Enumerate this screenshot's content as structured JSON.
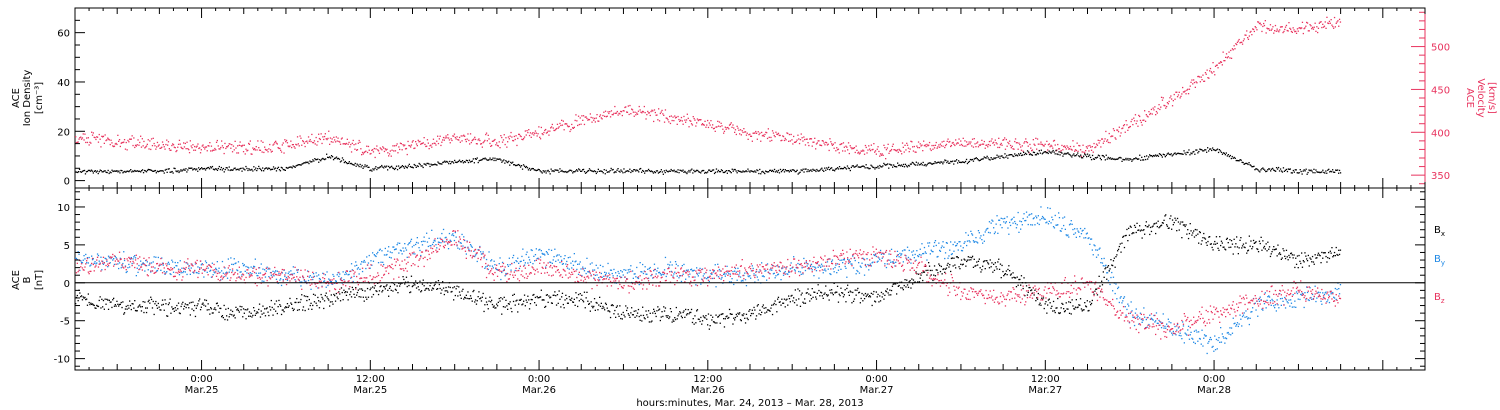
{
  "chart_data": [
    {
      "type": "scatter",
      "panel": "plasma",
      "ylabel": [
        "ACE",
        "Ion Density",
        "[cm⁻³]"
      ],
      "y2label": [
        "ACE",
        "Velocity",
        "[km/s]"
      ],
      "ylim": [
        -3,
        70
      ],
      "yticks": [
        0,
        20,
        40,
        60
      ],
      "y2lim": [
        335,
        545
      ],
      "y2ticks": [
        350,
        400,
        450,
        500
      ],
      "colors": {
        "density": "#000000",
        "velocity": "#e8335e"
      },
      "series": [
        {
          "name": "Ion Density",
          "axis": "left",
          "x_hours": [
            -9,
            -6,
            -3,
            0,
            3,
            6,
            9,
            12,
            15,
            18,
            21,
            24,
            27,
            30,
            33,
            36,
            39,
            42,
            45,
            48,
            51,
            54,
            57,
            60,
            63,
            66,
            69,
            72,
            75,
            78,
            81
          ],
          "values": [
            4,
            4,
            4,
            5,
            5,
            5,
            10,
            5,
            6,
            8,
            9,
            4,
            4,
            4,
            4,
            4,
            4,
            4,
            5,
            6,
            7,
            8,
            10,
            12,
            10,
            9,
            11,
            13,
            5,
            4,
            4
          ]
        },
        {
          "name": "Velocity",
          "axis": "right",
          "x_hours": [
            -9,
            -6,
            -3,
            0,
            3,
            6,
            9,
            12,
            15,
            18,
            21,
            24,
            27,
            30,
            33,
            36,
            39,
            42,
            45,
            48,
            51,
            54,
            57,
            60,
            63,
            66,
            69,
            72,
            75,
            78,
            81
          ],
          "values": [
            395,
            390,
            385,
            383,
            382,
            385,
            395,
            378,
            385,
            395,
            390,
            400,
            415,
            425,
            420,
            410,
            398,
            393,
            384,
            378,
            384,
            388,
            388,
            384,
            380,
            410,
            440,
            475,
            525,
            520,
            530
          ]
        }
      ]
    },
    {
      "type": "scatter",
      "panel": "magnetic",
      "ylabel": [
        "ACE",
        "B",
        "[nT]"
      ],
      "ylim": [
        -11.5,
        12.5
      ],
      "yticks": [
        -10,
        -5,
        0,
        5,
        10
      ],
      "zero_line": true,
      "legend_labels": [
        "B",
        "B",
        "B"
      ],
      "legend_subscripts": [
        "x",
        "y",
        "z"
      ],
      "colors": {
        "Bx": "#000000",
        "By": "#1e88e5",
        "Bz": "#e8335e"
      },
      "series": [
        {
          "name": "Bx",
          "x_hours": [
            -9,
            -6,
            -3,
            0,
            3,
            6,
            9,
            12,
            15,
            18,
            21,
            24,
            27,
            30,
            33,
            36,
            39,
            42,
            45,
            48,
            51,
            54,
            57,
            60,
            63,
            66,
            69,
            72,
            75,
            78,
            81
          ],
          "values": [
            -2,
            -3,
            -3,
            -3,
            -4,
            -3,
            -2,
            -1,
            0,
            -1,
            -3,
            -2,
            -2,
            -4,
            -4,
            -5,
            -4,
            -2,
            -1,
            -2,
            1,
            3,
            2,
            -3,
            -3,
            7,
            8,
            5,
            5,
            3,
            4
          ]
        },
        {
          "name": "By",
          "x_hours": [
            -9,
            -6,
            -3,
            0,
            3,
            6,
            9,
            12,
            15,
            18,
            21,
            24,
            27,
            30,
            33,
            36,
            39,
            42,
            45,
            48,
            51,
            54,
            57,
            60,
            63,
            66,
            69,
            72,
            75,
            78,
            81
          ],
          "values": [
            3,
            3,
            2,
            2,
            2,
            1,
            0,
            3,
            5,
            6,
            2,
            4,
            2,
            1,
            2,
            1,
            1,
            2,
            2,
            3,
            4,
            5,
            8,
            9,
            6,
            -4,
            -6,
            -8,
            -3,
            -2,
            -1
          ]
        },
        {
          "name": "Bz",
          "x_hours": [
            -9,
            -6,
            -3,
            0,
            3,
            6,
            9,
            12,
            15,
            18,
            21,
            24,
            27,
            30,
            33,
            36,
            39,
            42,
            45,
            48,
            51,
            54,
            57,
            60,
            63,
            66,
            69,
            72,
            75,
            78,
            81
          ],
          "values": [
            2,
            3,
            2,
            2,
            1,
            1,
            0,
            1,
            3,
            6,
            1,
            2,
            1,
            0,
            1,
            1,
            2,
            2,
            3,
            4,
            2,
            -1,
            -2,
            -1,
            0,
            -5,
            -6,
            -4,
            -2,
            -1,
            -2
          ]
        }
      ]
    }
  ],
  "x_axis": {
    "xlim_hours": [
      -9,
      87
    ],
    "ticks": [
      {
        "hours": 0,
        "time": "0:00",
        "date": "Mar.25"
      },
      {
        "hours": 12,
        "time": "12:00",
        "date": "Mar.25"
      },
      {
        "hours": 24,
        "time": "0:00",
        "date": "Mar.26"
      },
      {
        "hours": 36,
        "time": "12:00",
        "date": "Mar.26"
      },
      {
        "hours": 48,
        "time": "0:00",
        "date": "Mar.27"
      },
      {
        "hours": 60,
        "time": "12:00",
        "date": "Mar.27"
      },
      {
        "hours": 72,
        "time": "0:00",
        "date": "Mar.28"
      }
    ],
    "label": "hours:minutes, Mar. 24, 2013 – Mar. 28, 2013"
  }
}
